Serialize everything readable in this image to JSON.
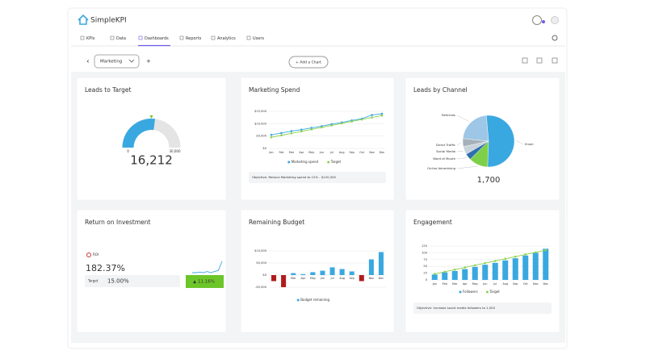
{
  "header": {
    "brand": "SimpleKPI"
  },
  "nav": {
    "tabs": [
      "KPIs",
      "Data",
      "Dashboards",
      "Reports",
      "Analytics",
      "Users"
    ],
    "active": 2
  },
  "toolbar": {
    "dashboard": "Marketing",
    "add_button": "+ Add a Chart"
  },
  "widgets": [
    {
      "type": "gauge",
      "title": "Leads to Target",
      "value": {
        "value": 16212,
        "label": "16,212"
      },
      "min": 0,
      "max": {
        "value": 30000,
        "label": "30,000"
      },
      "color": "#3aa8e0",
      "track_color": "#e4e4e4"
    },
    {
      "type": "line",
      "title": "Marketing Spend",
      "categories": [
        "Jan",
        "Feb",
        "Mar",
        "Apr",
        "May",
        "Jun",
        "Jul",
        "Aug",
        "Sep",
        "Oct",
        "Nov",
        "Dec"
      ],
      "series": [
        {
          "name": "Marketing spend",
          "color": "#3aa8e0",
          "values": [
            5500,
            6200,
            7000,
            7600,
            8300,
            9000,
            9800,
            10500,
            11300,
            12000,
            13500,
            14000
          ]
        },
        {
          "name": "Target",
          "color": "#8fd14f",
          "values": [
            4500,
            5300,
            6100,
            6900,
            7700,
            8500,
            9300,
            10100,
            10900,
            11700,
            12500,
            13300
          ]
        }
      ],
      "ylim": [
        0,
        15000
      ],
      "yticks": [
        {
          "value": 0,
          "label": "$0"
        },
        {
          "value": 5000,
          "label": "$5,000"
        },
        {
          "value": 10000,
          "label": "$10,000"
        },
        {
          "value": 15000,
          "label": "$15,000"
        }
      ],
      "note": "Objective: Reduce Marketing spend to 12% - $120,000"
    },
    {
      "type": "pie",
      "title": "Leads by Channel",
      "slices": [
        {
          "name": "Email",
          "value": 52,
          "color": "#3aa8e0"
        },
        {
          "name": "Online Advertising",
          "value": 12,
          "color": "#7ed04b"
        },
        {
          "name": "Word of Mouth",
          "value": 4,
          "color": "#2f6fb0"
        },
        {
          "name": "Social Media",
          "value": 5,
          "color": "#c9d3dc"
        },
        {
          "name": "Direct Traffic",
          "value": 5,
          "color": "#a5b0ba"
        },
        {
          "name": "Referrals",
          "value": 22,
          "color": "#9ec6e6"
        }
      ],
      "total": {
        "value": 1700,
        "label": "1,700"
      }
    },
    {
      "type": "kpi",
      "title": "Return on Investment",
      "kpi_name": "ROI",
      "value": {
        "value": 182.37,
        "label": "182.37%"
      },
      "target_label": "Target",
      "target": {
        "value": 15,
        "label": "15.00%"
      },
      "spark": [
        2,
        2,
        2.5,
        2,
        3,
        2,
        3,
        4,
        12
      ],
      "change": {
        "value": 11.16,
        "label": "11.16%"
      },
      "color": "#3aa8e0",
      "good_color": "#6cc629"
    },
    {
      "type": "bar",
      "title": "Remaining Budget",
      "categories": [
        "Jan",
        "Feb",
        "Mar",
        "Apr",
        "May",
        "Jun",
        "Jul",
        "Aug",
        "Sep",
        "Oct",
        "Nov",
        "Dec"
      ],
      "series": [
        {
          "name": "Budget remaining",
          "color": "#3aa8e0",
          "values": [
            -2500,
            -5000,
            800,
            400,
            1200,
            1800,
            3200,
            2500,
            1500,
            -2500,
            6500,
            9500
          ]
        }
      ],
      "negative_color": "#b01c1c",
      "ylim": [
        -6000,
        12000
      ],
      "yticks": [
        {
          "value": -5000,
          "label": "-$5,000"
        },
        {
          "value": 0,
          "label": "$0"
        },
        {
          "value": 5000,
          "label": "$5,000"
        },
        {
          "value": 10000,
          "label": "$10,000"
        }
      ]
    },
    {
      "type": "combo",
      "title": "Engagement",
      "categories": [
        "Jan",
        "Feb",
        "Mar",
        "Apr",
        "May",
        "Jun",
        "Jul",
        "Aug",
        "Sep",
        "Oct",
        "Nov",
        "Dec"
      ],
      "series": [
        {
          "name": "Followers",
          "kind": "bar",
          "color": "#3aa8e0",
          "values": [
            20,
            28,
            33,
            40,
            48,
            56,
            63,
            72,
            80,
            90,
            100,
            115
          ]
        },
        {
          "name": "Target",
          "kind": "line",
          "color": "#8fd14f",
          "values": [
            22,
            30,
            38,
            46,
            54,
            62,
            70,
            78,
            86,
            94,
            102,
            110
          ]
        }
      ],
      "ylim": [
        0,
        140
      ],
      "yticks": [
        0,
        25,
        50,
        75,
        100,
        125
      ],
      "note": "Objective: Increase social media followers to 1,000"
    }
  ]
}
